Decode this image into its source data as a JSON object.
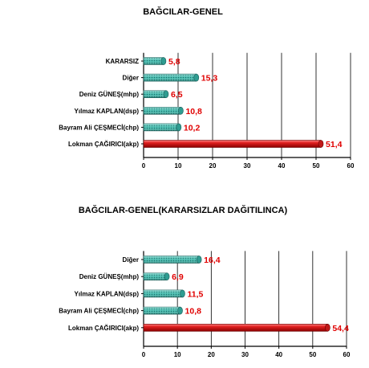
{
  "chart_data": [
    {
      "type": "bar",
      "orientation": "horizontal",
      "title": "BAĞCILAR-GENEL",
      "categories": [
        "KARARSIZ",
        "Diğer",
        "Deniz GÜNEŞ(mhp)",
        "Yılmaz KAPLAN(dsp)",
        "Bayram Ali ÇEŞMECİ(chp)",
        "Lokman ÇAĞIRICI(akp)"
      ],
      "values": [
        5.8,
        15.3,
        6.5,
        10.8,
        10.2,
        51.4
      ],
      "value_labels": [
        "5,8",
        "15,3",
        "6,5",
        "10,8",
        "10,2",
        "51,4"
      ],
      "bar_colors": [
        "#3bb3a6",
        "#3bb3a6",
        "#3bb3a6",
        "#3bb3a6",
        "#3bb3a6",
        "#d42020"
      ],
      "xlim": [
        0,
        60
      ],
      "xticks": [
        "0",
        "10",
        "20",
        "30",
        "40",
        "50",
        "60"
      ],
      "grid": true,
      "xlabel": "",
      "ylabel": ""
    },
    {
      "type": "bar",
      "orientation": "horizontal",
      "title": "BAĞCILAR-GENEL(KARARSIZLAR DAĞITILINCA)",
      "categories": [
        "Diğer",
        "Deniz GÜNEŞ(mhp)",
        "Yılmaz KAPLAN(dsp)",
        "Bayram Ali ÇEŞMECİ(chp)",
        "Lokman ÇAĞIRICI(akp)"
      ],
      "values": [
        16.4,
        6.9,
        11.5,
        10.8,
        54.4
      ],
      "value_labels": [
        "16,4",
        "6,9",
        "11,5",
        "10,8",
        "54,4"
      ],
      "bar_colors": [
        "#3bb3a6",
        "#3bb3a6",
        "#3bb3a6",
        "#3bb3a6",
        "#d42020"
      ],
      "xlim": [
        0,
        60
      ],
      "xticks": [
        "0",
        "10",
        "20",
        "30",
        "40",
        "50",
        "60"
      ],
      "grid": true,
      "xlabel": "",
      "ylabel": ""
    }
  ]
}
